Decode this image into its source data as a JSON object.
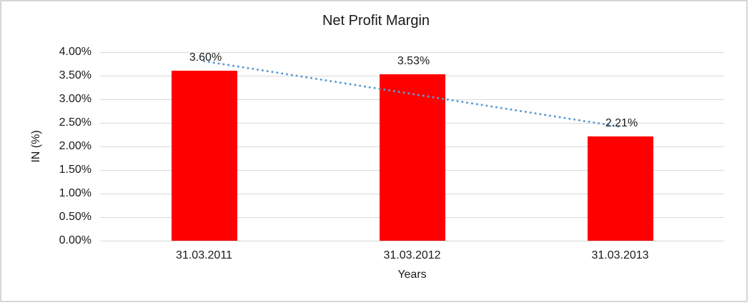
{
  "window": {
    "background_color": "#FFFFFF",
    "border_color": "#D6D6D6"
  },
  "chart_data": {
    "type": "bar",
    "title": "Net Profit Margin",
    "categories": [
      "31.03.2011",
      "31.03.2012",
      "31.03.2013"
    ],
    "values": [
      3.6,
      3.53,
      2.21
    ],
    "value_labels": [
      "3.60%",
      "3.53%",
      "2.21%"
    ],
    "xlabel": "Years",
    "ylabel": "IN (%)",
    "ylim": [
      0,
      4.0
    ],
    "ytick_step": 0.5,
    "ytick_labels": [
      "0.00%",
      "0.50%",
      "1.00%",
      "1.50%",
      "2.00%",
      "2.50%",
      "3.00%",
      "3.50%",
      "4.00%"
    ],
    "grid": true,
    "legend": "none",
    "bar_color": "#FF0000",
    "gridline_color": "#D9D9D9",
    "label_color": "#1A1A1A",
    "trendline": {
      "type": "linear",
      "style": "dotted",
      "color": "#5B9BD5"
    }
  }
}
